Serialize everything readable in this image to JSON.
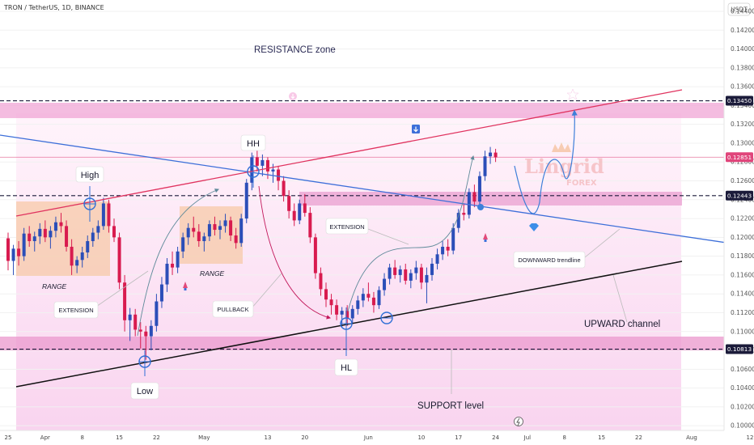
{
  "header": {
    "title": "TRON / TetherUS, 1D, BINANCE",
    "currency": "USDT"
  },
  "watermark": {
    "line1": "Lingrid",
    "line2": "FOREX"
  },
  "chart_data": {
    "type": "candlestick",
    "symbol": "TRON / TetherUS",
    "timeframe": "1D",
    "exchange": "BINANCE",
    "ylim": [
      0.0995,
      0.1452
    ],
    "y_ticks": [
      0.1,
      0.102,
      0.104,
      0.106,
      0.108,
      0.11,
      0.112,
      0.114,
      0.116,
      0.118,
      0.12,
      0.122,
      0.124,
      0.126,
      0.128,
      0.13,
      0.132,
      0.134,
      0.136,
      0.138,
      0.14,
      0.142,
      0.144
    ],
    "y_tick_labels": [
      "0.10000",
      "0.10200",
      "0.10400",
      "0.10600",
      "0.10800",
      "0.11000",
      "0.11200",
      "0.11400",
      "0.11600",
      "0.11800",
      "0.12000",
      "0.12200",
      "0.12400",
      "0.12600",
      "0.12800",
      "0.13000",
      "0.13200",
      "0.13400",
      "0.13600",
      "0.13800",
      "0.14000",
      "0.14200",
      "0.14400"
    ],
    "x_labels": [
      {
        "label": "25",
        "day": 0
      },
      {
        "label": "Apr",
        "day": 7
      },
      {
        "label": "8",
        "day": 14
      },
      {
        "label": "15",
        "day": 21
      },
      {
        "label": "22",
        "day": 28
      },
      {
        "label": "May",
        "day": 37
      },
      {
        "label": "13",
        "day": 49
      },
      {
        "label": "20",
        "day": 56
      },
      {
        "label": "Jun",
        "day": 68
      },
      {
        "label": "10",
        "day": 78
      },
      {
        "label": "17",
        "day": 85
      },
      {
        "label": "24",
        "day": 92
      },
      {
        "label": "Jul",
        "day": 98
      },
      {
        "label": "8",
        "day": 105
      },
      {
        "label": "15",
        "day": 112
      },
      {
        "label": "22",
        "day": 119
      },
      {
        "label": "Aug",
        "day": 129
      },
      {
        "label": "12",
        "day": 140
      }
    ],
    "price_tags": [
      {
        "label": "0.13450",
        "value": 0.1345,
        "color": "#1b1b3a",
        "style": "dashed"
      },
      {
        "label": "0.12851",
        "value": 0.12851,
        "color": "#e0457b",
        "style": "solid"
      },
      {
        "label": "0.12443",
        "value": 0.12443,
        "color": "#1b1b3a",
        "style": "dashed"
      },
      {
        "label": "0.10813",
        "value": 0.10813,
        "color": "#1b1b3a",
        "style": "dashed"
      }
    ],
    "candles": [
      [
        0.1199,
        0.1205,
        0.1165,
        0.1175
      ],
      [
        0.1175,
        0.1192,
        0.116,
        0.1188
      ],
      [
        0.1188,
        0.1196,
        0.117,
        0.118
      ],
      [
        0.118,
        0.121,
        0.1175,
        0.1204
      ],
      [
        0.1204,
        0.1212,
        0.119,
        0.1196
      ],
      [
        0.1196,
        0.1206,
        0.1185,
        0.1201
      ],
      [
        0.1201,
        0.1215,
        0.1193,
        0.1209
      ],
      [
        0.1209,
        0.1218,
        0.1195,
        0.12
      ],
      [
        0.12,
        0.1212,
        0.1188,
        0.1207
      ],
      [
        0.1207,
        0.1222,
        0.12,
        0.1216
      ],
      [
        0.1216,
        0.1226,
        0.1205,
        0.1212
      ],
      [
        0.1212,
        0.1218,
        0.1185,
        0.119
      ],
      [
        0.119,
        0.1198,
        0.116,
        0.117
      ],
      [
        0.117,
        0.118,
        0.1162,
        0.1176
      ],
      [
        0.1176,
        0.119,
        0.1168,
        0.1184
      ],
      [
        0.1184,
        0.1202,
        0.1178,
        0.1196
      ],
      [
        0.1196,
        0.121,
        0.119,
        0.1205
      ],
      [
        0.1205,
        0.1218,
        0.1198,
        0.1212
      ],
      [
        0.1212,
        0.1242,
        0.1208,
        0.1236
      ],
      [
        0.1236,
        0.124,
        0.1205,
        0.1212
      ],
      [
        0.1212,
        0.122,
        0.1195,
        0.12
      ],
      [
        0.12,
        0.1205,
        0.1145,
        0.1152
      ],
      [
        0.1152,
        0.116,
        0.11,
        0.1112
      ],
      [
        0.1112,
        0.1125,
        0.109,
        0.1118
      ],
      [
        0.1118,
        0.1124,
        0.1095,
        0.1102
      ],
      [
        0.1102,
        0.111,
        0.1082,
        0.11
      ],
      [
        0.11,
        0.1106,
        0.107,
        0.1095
      ],
      [
        0.1095,
        0.1112,
        0.108,
        0.1106
      ],
      [
        0.1106,
        0.114,
        0.11,
        0.1132
      ],
      [
        0.1132,
        0.1158,
        0.1125,
        0.115
      ],
      [
        0.115,
        0.1178,
        0.1142,
        0.1172
      ],
      [
        0.1172,
        0.1185,
        0.116,
        0.1168
      ],
      [
        0.1168,
        0.119,
        0.1162,
        0.1185
      ],
      [
        0.1185,
        0.1205,
        0.1178,
        0.12
      ],
      [
        0.12,
        0.1215,
        0.1192,
        0.121
      ],
      [
        0.121,
        0.1222,
        0.12,
        0.1206
      ],
      [
        0.1206,
        0.1214,
        0.119,
        0.1196
      ],
      [
        0.1196,
        0.1205,
        0.1185,
        0.1201
      ],
      [
        0.1201,
        0.1218,
        0.1196,
        0.1214
      ],
      [
        0.1214,
        0.1222,
        0.1202,
        0.1208
      ],
      [
        0.1208,
        0.1218,
        0.1198,
        0.1212
      ],
      [
        0.1212,
        0.1225,
        0.1205,
        0.1218
      ],
      [
        0.1218,
        0.1222,
        0.1196,
        0.1202
      ],
      [
        0.1202,
        0.121,
        0.1188,
        0.1194
      ],
      [
        0.1194,
        0.1225,
        0.119,
        0.122
      ],
      [
        0.122,
        0.1262,
        0.1215,
        0.1258
      ],
      [
        0.1258,
        0.129,
        0.125,
        0.1285
      ],
      [
        0.1285,
        0.1292,
        0.127,
        0.1276
      ],
      [
        0.1276,
        0.1288,
        0.1265,
        0.1282
      ],
      [
        0.1282,
        0.1285,
        0.1262,
        0.127
      ],
      [
        0.127,
        0.1278,
        0.1258,
        0.1272
      ],
      [
        0.1272,
        0.1276,
        0.125,
        0.126
      ],
      [
        0.126,
        0.1265,
        0.1238,
        0.1244
      ],
      [
        0.1244,
        0.125,
        0.122,
        0.1228
      ],
      [
        0.1228,
        0.1236,
        0.1212,
        0.1218
      ],
      [
        0.1218,
        0.124,
        0.1214,
        0.1236
      ],
      [
        0.1236,
        0.1246,
        0.1222,
        0.1226
      ],
      [
        0.1226,
        0.1232,
        0.1194,
        0.12
      ],
      [
        0.12,
        0.1204,
        0.1156,
        0.1162
      ],
      [
        0.1162,
        0.1168,
        0.1138,
        0.1145
      ],
      [
        0.1145,
        0.1152,
        0.1126,
        0.1134
      ],
      [
        0.1134,
        0.114,
        0.1118,
        0.1128
      ],
      [
        0.1128,
        0.1134,
        0.1112,
        0.1118
      ],
      [
        0.1118,
        0.1126,
        0.1105,
        0.1122
      ],
      [
        0.1122,
        0.1128,
        0.1106,
        0.1114
      ],
      [
        0.1114,
        0.1128,
        0.1108,
        0.1124
      ],
      [
        0.1124,
        0.1138,
        0.1118,
        0.1133
      ],
      [
        0.1133,
        0.1146,
        0.1126,
        0.114
      ],
      [
        0.114,
        0.1152,
        0.1132,
        0.1136
      ],
      [
        0.1136,
        0.1142,
        0.112,
        0.1128
      ],
      [
        0.1128,
        0.1148,
        0.1124,
        0.1144
      ],
      [
        0.1144,
        0.1162,
        0.1138,
        0.1156
      ],
      [
        0.1156,
        0.1172,
        0.115,
        0.1168
      ],
      [
        0.1168,
        0.1176,
        0.1156,
        0.116
      ],
      [
        0.116,
        0.117,
        0.1152,
        0.1166
      ],
      [
        0.1166,
        0.1172,
        0.115,
        0.1154
      ],
      [
        0.1154,
        0.1166,
        0.1146,
        0.1162
      ],
      [
        0.1162,
        0.1175,
        0.1155,
        0.1168
      ],
      [
        0.1168,
        0.1172,
        0.1145,
        0.1152
      ],
      [
        0.1152,
        0.1168,
        0.113,
        0.116
      ],
      [
        0.116,
        0.1178,
        0.1154,
        0.1172
      ],
      [
        0.1172,
        0.1188,
        0.1166,
        0.1182
      ],
      [
        0.1182,
        0.1196,
        0.1176,
        0.119
      ],
      [
        0.119,
        0.1198,
        0.118,
        0.1186
      ],
      [
        0.1186,
        0.1215,
        0.1182,
        0.121
      ],
      [
        0.121,
        0.123,
        0.1205,
        0.1226
      ],
      [
        0.1226,
        0.1236,
        0.1218,
        0.1224
      ],
      [
        0.1224,
        0.1252,
        0.122,
        0.1248
      ],
      [
        0.1248,
        0.1256,
        0.1232,
        0.1238
      ],
      [
        0.1238,
        0.127,
        0.1234,
        0.1265
      ],
      [
        0.1265,
        0.1292,
        0.126,
        0.1286
      ],
      [
        0.1286,
        0.1296,
        0.1278,
        0.129
      ],
      [
        0.129,
        0.1294,
        0.128,
        0.1285
      ]
    ]
  },
  "annotations": {
    "resistance_zone": "RESISTANCE zone",
    "high": "High",
    "hh": "HH",
    "range_left": "RANGE",
    "range_mid": "RANGE",
    "extension_left": "EXTENSION",
    "extension_right": "EXTENSION",
    "pullback": "PULLBACK",
    "downward_trendline": "DOWNWARD trendline",
    "upward_channel": "UPWARD channel",
    "low": "Low",
    "hl": "HL",
    "support_level": "SUPPORT level"
  },
  "colors": {
    "bull": "#2b4eb8",
    "bear": "#d81b4f",
    "red_trendline": "#e0335f",
    "blue_trendline": "#3d6fd9",
    "channel_line": "#111111",
    "zone_fill": "#f3b8df",
    "range_fill": "#f7caa8"
  }
}
